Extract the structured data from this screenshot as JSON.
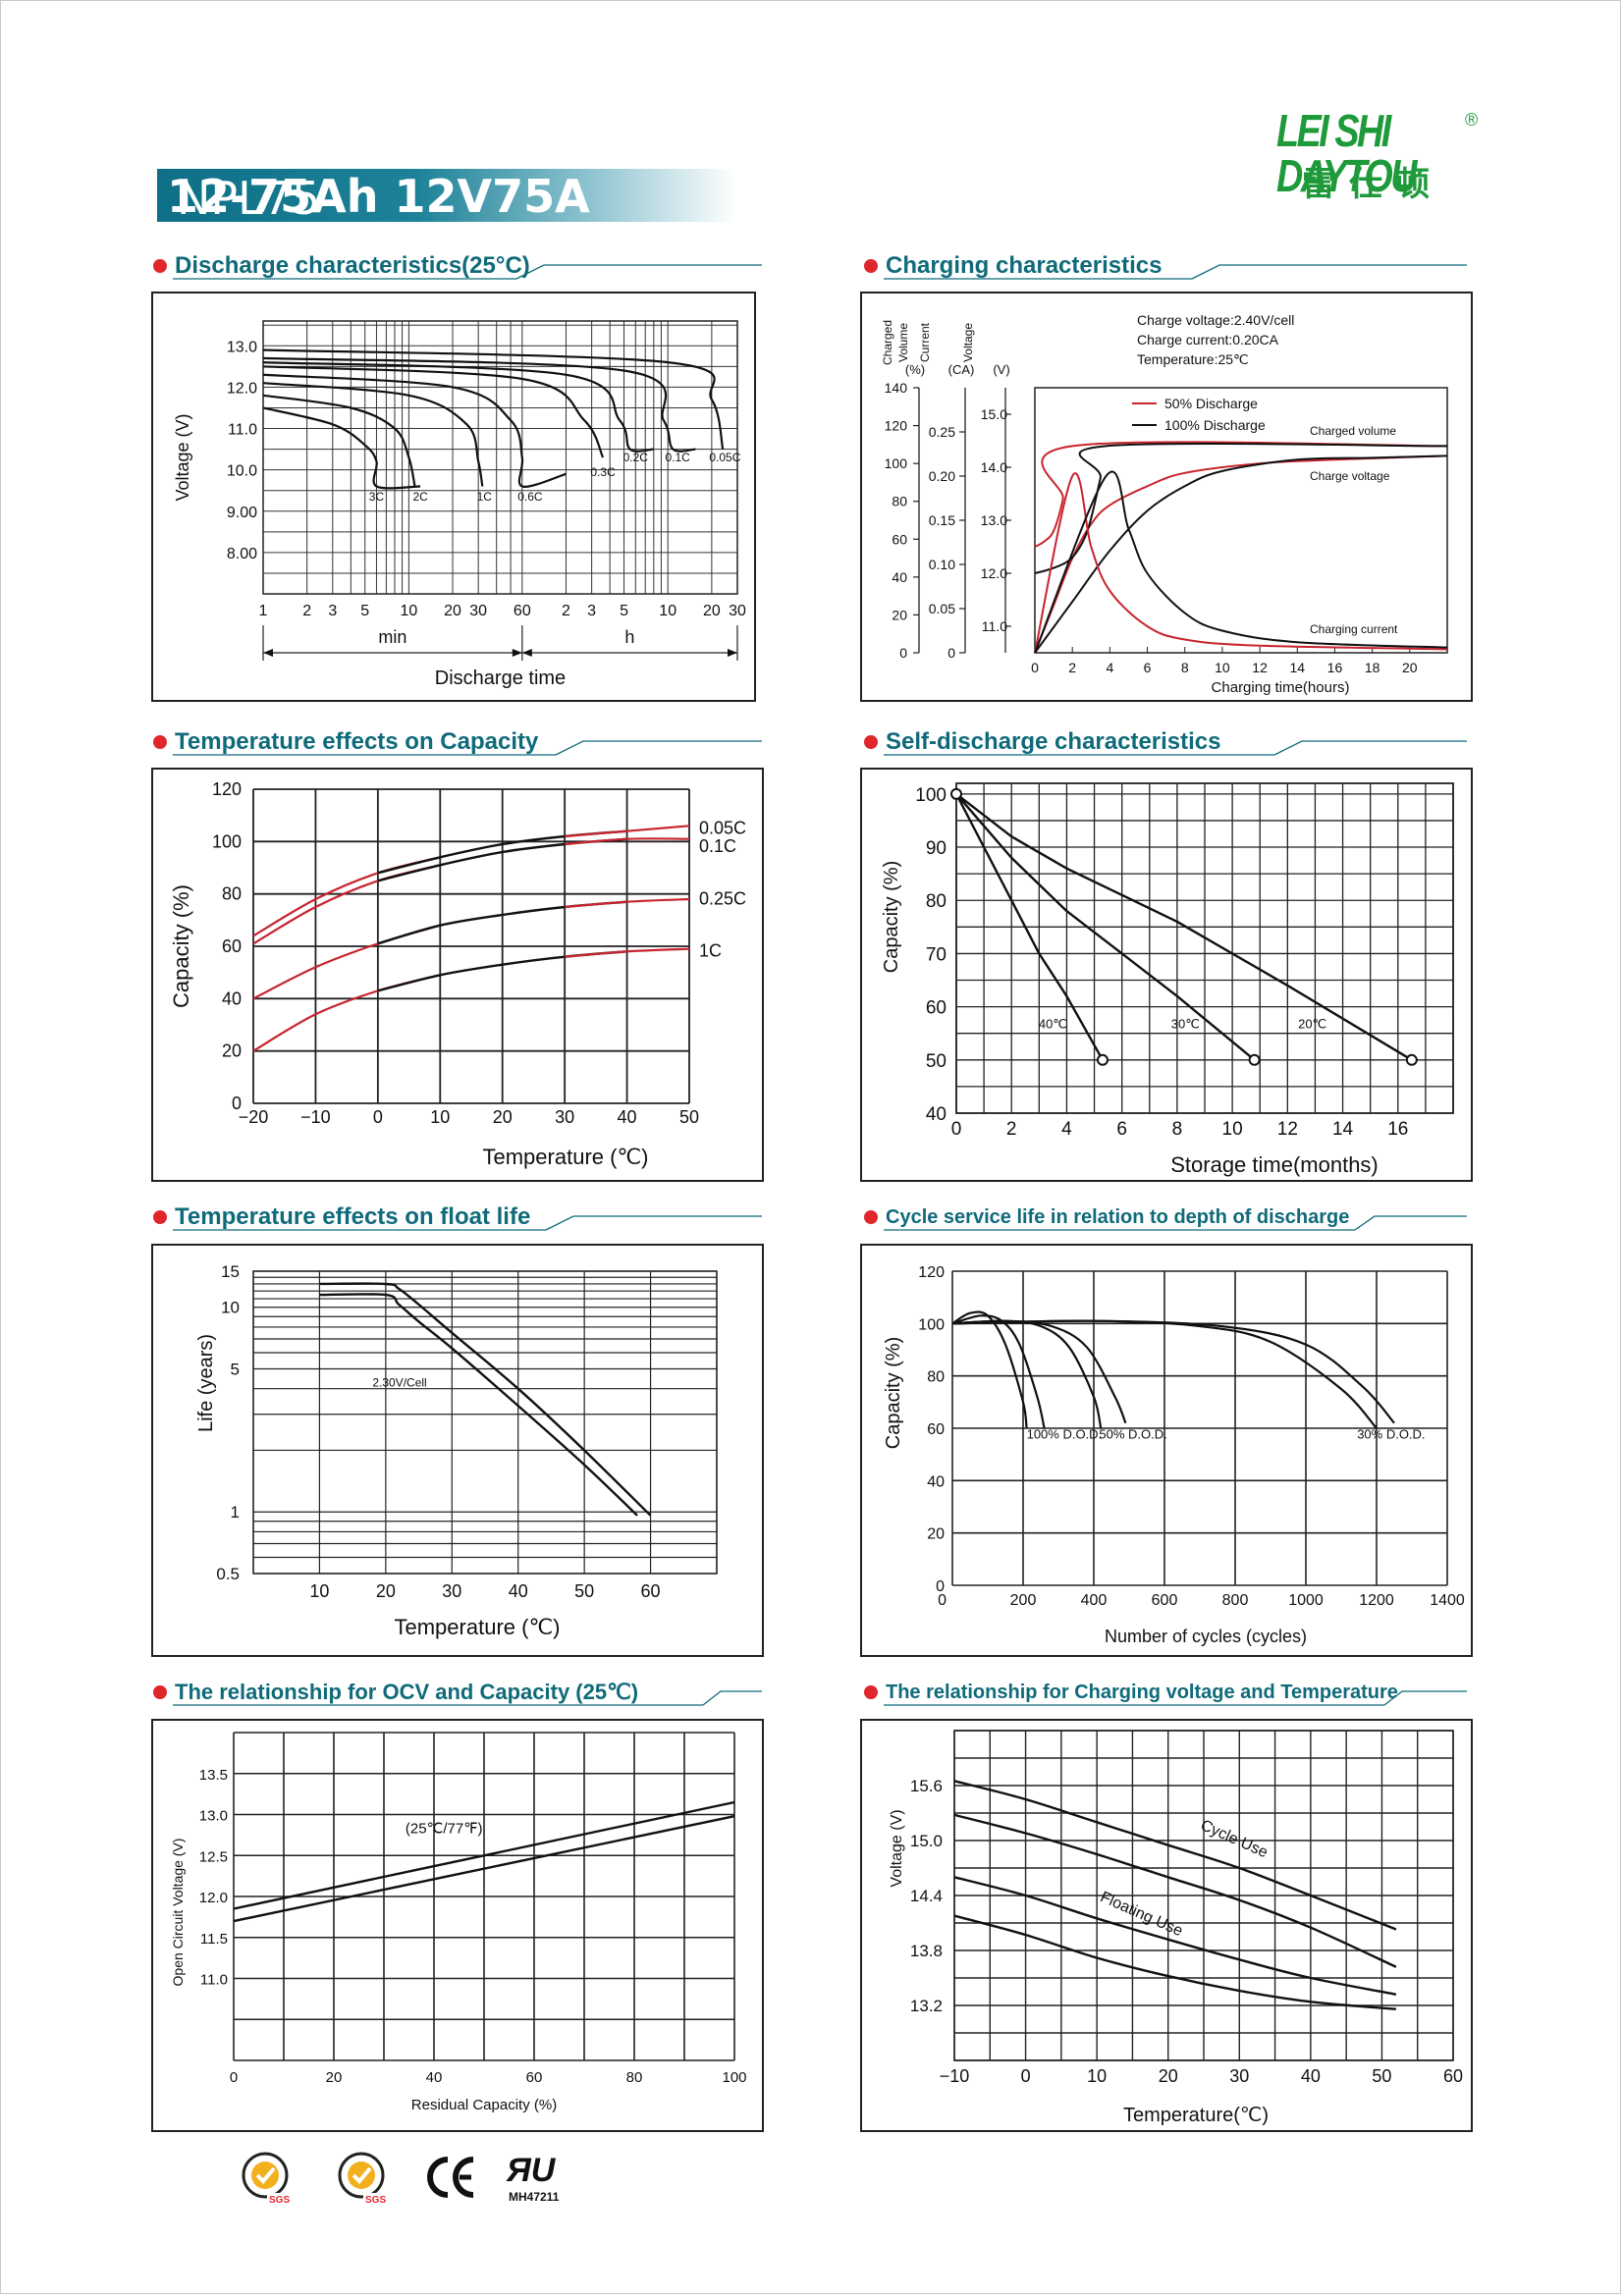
{
  "header": {
    "title_part1": "NPL75-",
    "title_part2": "12-75Ah 12V75A",
    "brand": "LEI SHI DAYTOU",
    "brand_cn": "雷仕顿",
    "reg_mark": "®",
    "brand_color": "#1e9a3a",
    "title_color": "#0e6f86"
  },
  "sections": {
    "discharge": "Discharge characteristics(25°C)",
    "charging": "Charging characteristics",
    "temp_capacity": "Temperature effects on Capacity",
    "self_discharge": "Self-discharge characteristics",
    "float_life": "Temperature effects on float life",
    "cycle_life": "Cycle service life in relation to depth of discharge",
    "ocv": "The relationship  for OCV and Capacity (25℃)",
    "charge_voltage": "The relationship for Charging voltage and Temperature"
  },
  "colors": {
    "accent_red": "#e0262b",
    "heading_teal": "#0f6a7a",
    "curve_red": "#c8242e",
    "curve_black": "#111111"
  },
  "certifications": [
    "sgs-badge-icon",
    "sgs-badge-icon",
    "ce-mark-icon",
    "ul-mark-icon"
  ],
  "cert_code": "MH47211",
  "chart_data": [
    {
      "id": "discharge",
      "type": "line",
      "ylabel": "Voltage (V)",
      "xlabel": "Discharge time",
      "x_unit_labels": [
        "min",
        "h"
      ],
      "x_scale": "log",
      "xticks_min": [
        "1",
        "2",
        "3",
        "5",
        "10",
        "20",
        "30",
        "60"
      ],
      "xticks_h": [
        "2",
        "3",
        "5",
        "10",
        "20",
        "30"
      ],
      "yticks": [
        "13.0",
        "12.0",
        "11.0",
        "10.0",
        "9.00",
        "8.00"
      ],
      "ylim": [
        7.0,
        13.6
      ],
      "series": [
        {
          "name": "3C",
          "x_min": [
            1,
            3,
            5,
            6,
            6,
            12
          ],
          "y": [
            11.5,
            11.1,
            10.6,
            10.2,
            9.6,
            9.6
          ]
        },
        {
          "name": "2C",
          "x_min": [
            1,
            4,
            8,
            10,
            11
          ],
          "y": [
            11.8,
            11.5,
            11.0,
            10.3,
            9.6
          ]
        },
        {
          "name": "1C",
          "x_min": [
            1,
            10,
            25,
            30,
            32
          ],
          "y": [
            12.1,
            11.8,
            11.1,
            10.2,
            9.6
          ]
        },
        {
          "name": "0.6C",
          "x_min": [
            1,
            20,
            50,
            60,
            60,
            120
          ],
          "y": [
            12.3,
            12.0,
            11.2,
            10.3,
            9.6,
            9.9
          ]
        },
        {
          "name": "0.3C",
          "x_min": [
            1,
            60,
            160,
            215
          ],
          "y": [
            12.5,
            12.2,
            11.2,
            10.3
          ]
        },
        {
          "name": "0.2C",
          "x_min": [
            1,
            120,
            280,
            330,
            480
          ],
          "y": [
            12.6,
            12.3,
            11.2,
            10.5,
            10.5
          ]
        },
        {
          "name": "0.1C",
          "x_min": [
            1,
            300,
            560,
            650,
            930
          ],
          "y": [
            12.7,
            12.4,
            11.2,
            10.5,
            10.5
          ]
        },
        {
          "name": "0.05C",
          "x_min": [
            1,
            600,
            1200,
            1430
          ],
          "y": [
            12.9,
            12.6,
            11.7,
            10.5
          ]
        }
      ]
    },
    {
      "id": "charging",
      "type": "line",
      "xlabel": "Charging time(hours)",
      "y_axes": [
        {
          "label": "Charged Volume",
          "unit": "(%)",
          "ticks": [
            "140",
            "120",
            "100",
            "80",
            "60",
            "40",
            "20",
            "0"
          ]
        },
        {
          "label": "Current",
          "unit": "(CA)",
          "ticks": [
            "0.25",
            "0.20",
            "0.15",
            "0.10",
            "0.05",
            "0"
          ]
        },
        {
          "label": "Voltage",
          "unit": "(V)",
          "ticks": [
            "15.0",
            "14.0",
            "13.0",
            "12.0",
            "11.0"
          ]
        }
      ],
      "xticks": [
        "0",
        "2",
        "4",
        "6",
        "8",
        "10",
        "12",
        "14",
        "16",
        "18",
        "20"
      ],
      "xlim": [
        0,
        22
      ],
      "notes": [
        "Charge voltage:2.40V/cell",
        "Charge current:0.20CA",
        "Temperature:25℃"
      ],
      "legend": [
        "50% Discharge",
        "100% Discharge"
      ],
      "curve_labels": [
        "Charged volume",
        "Charge voltage",
        "Charging current"
      ],
      "series": [
        {
          "name": "50% Discharge – volume",
          "x": [
            0,
            1,
            2,
            3,
            4,
            6,
            8,
            12,
            16,
            22
          ],
          "y_pct": [
            0,
            25,
            50,
            68,
            78,
            88,
            95,
            100,
            102,
            104
          ]
        },
        {
          "name": "100% Discharge – volume",
          "x": [
            0,
            2,
            4,
            6,
            8,
            10,
            14,
            18,
            22
          ],
          "y_pct": [
            0,
            27,
            54,
            75,
            88,
            96,
            102,
            103,
            104
          ]
        },
        {
          "name": "50% Discharge – voltage",
          "x": [
            0,
            0.5,
            1,
            1.5,
            2,
            22
          ],
          "y_v": [
            12.5,
            12.6,
            12.8,
            13.4,
            14.4,
            14.4
          ]
        },
        {
          "name": "100% Discharge – voltage",
          "x": [
            0,
            1,
            2,
            2.8,
            3.5,
            3.8,
            22
          ],
          "y_v": [
            12.0,
            12.1,
            12.3,
            12.8,
            13.8,
            14.4,
            14.4
          ]
        },
        {
          "name": "50% Discharge – current",
          "x": [
            0,
            2,
            3,
            4,
            6,
            8,
            12,
            22
          ],
          "y_ca": [
            0,
            0.2,
            0.12,
            0.07,
            0.03,
            0.015,
            0.008,
            0.004
          ]
        },
        {
          "name": "100% Discharge – current",
          "x": [
            0,
            3.8,
            5,
            6,
            8,
            10,
            14,
            22
          ],
          "y_ca": [
            0,
            0.2,
            0.14,
            0.09,
            0.045,
            0.025,
            0.012,
            0.006
          ]
        }
      ]
    },
    {
      "id": "temp_capacity",
      "type": "line",
      "xlabel": "Temperature (℃)",
      "ylabel": "Capacity  (%)",
      "xticks": [
        "−20",
        "−10",
        "0",
        "10",
        "20",
        "30",
        "40",
        "50"
      ],
      "yticks": [
        "120",
        "100",
        "80",
        "60",
        "40",
        "20",
        "0"
      ],
      "xlim": [
        -20,
        50
      ],
      "ylim": [
        0,
        120
      ],
      "series": [
        {
          "name": "0.05C",
          "x": [
            -20,
            -10,
            0,
            10,
            20,
            30,
            40,
            50
          ],
          "y": [
            64,
            78,
            88,
            94,
            99,
            102,
            104,
            106
          ]
        },
        {
          "name": "0.1C",
          "x": [
            -20,
            -10,
            0,
            10,
            20,
            30,
            40,
            50
          ],
          "y": [
            61,
            75,
            85,
            91,
            96,
            99,
            101,
            101
          ]
        },
        {
          "name": "0.25C",
          "x": [
            -20,
            -10,
            0,
            10,
            20,
            30,
            40,
            50
          ],
          "y": [
            40,
            52,
            61,
            68,
            72,
            75,
            77,
            78
          ]
        },
        {
          "name": "1C",
          "x": [
            -20,
            -10,
            0,
            10,
            20,
            30,
            40,
            50
          ],
          "y": [
            20,
            34,
            43,
            49,
            53,
            56,
            58,
            59
          ]
        }
      ]
    },
    {
      "id": "self_discharge",
      "type": "line",
      "xlabel": "Storage time(months)",
      "ylabel": "Capacity (%)",
      "xticks": [
        "0",
        "2",
        "4",
        "6",
        "8",
        "10",
        "12",
        "14",
        "16"
      ],
      "yticks": [
        "100",
        "90",
        "80",
        "70",
        "60",
        "50",
        "40"
      ],
      "xlim": [
        0,
        18
      ],
      "ylim": [
        40,
        102
      ],
      "series": [
        {
          "name": "40℃",
          "x": [
            0,
            1,
            2,
            3,
            4,
            5.3
          ],
          "y": [
            100,
            90,
            80,
            70,
            62,
            50
          ]
        },
        {
          "name": "30℃",
          "x": [
            0,
            2,
            4,
            6,
            8,
            10.8
          ],
          "y": [
            100,
            88,
            78,
            70,
            62,
            50
          ]
        },
        {
          "name": "20℃",
          "x": [
            0,
            2,
            4,
            8,
            12,
            16.5
          ],
          "y": [
            100,
            92,
            86,
            76,
            64,
            50
          ]
        }
      ]
    },
    {
      "id": "float_life",
      "type": "line",
      "xlabel": "Temperature (℃)",
      "ylabel": "Life (years)",
      "y_scale": "log",
      "xticks": [
        "10",
        "20",
        "30",
        "40",
        "50",
        "60"
      ],
      "yticks": [
        "15",
        "10",
        "5",
        "1",
        "0.5"
      ],
      "xlim": [
        0,
        70
      ],
      "ylim": [
        0.5,
        15
      ],
      "annotation": "2.30V/Cell",
      "series": [
        {
          "name": "upper",
          "x": [
            10,
            20,
            22,
            25,
            30,
            40,
            50,
            60
          ],
          "y": [
            13,
            13,
            12.3,
            10.3,
            7.5,
            4.0,
            2.0,
            0.96
          ]
        },
        {
          "name": "lower",
          "x": [
            10,
            20,
            22,
            25,
            30,
            40,
            50,
            58
          ],
          "y": [
            11.5,
            11.5,
            10.3,
            8.5,
            6.3,
            3.3,
            1.7,
            0.96
          ]
        }
      ]
    },
    {
      "id": "cycle_life",
      "type": "line",
      "xlabel": "Number of cycles (cycles)",
      "ylabel": "Capacity  (%)",
      "xticks": [
        "200",
        "400",
        "600",
        "800",
        "1000",
        "1200",
        "1400"
      ],
      "yticks": [
        "120",
        "100",
        "80",
        "60",
        "40",
        "20",
        "0"
      ],
      "xlim": [
        0,
        1400
      ],
      "ylim": [
        0,
        120
      ],
      "curve_labels": [
        "100% D.O.D.",
        "50% D.O.D.",
        "30% D.O.D."
      ],
      "series": [
        {
          "name": "100% D.O.D. a",
          "x": [
            0,
            50,
            100,
            150,
            200,
            210
          ],
          "y": [
            100,
            104,
            103,
            92,
            70,
            60
          ]
        },
        {
          "name": "100% D.O.D. b",
          "x": [
            0,
            80,
            140,
            190,
            240,
            260
          ],
          "y": [
            100,
            103,
            101,
            92,
            72,
            60
          ]
        },
        {
          "name": "50% D.O.D. a",
          "x": [
            0,
            150,
            250,
            330,
            400,
            420
          ],
          "y": [
            100,
            101,
            99,
            91,
            72,
            60
          ]
        },
        {
          "name": "50% D.O.D. b",
          "x": [
            0,
            150,
            280,
            380,
            460,
            490
          ],
          "y": [
            100,
            101,
            99,
            91,
            72,
            62
          ]
        },
        {
          "name": "30% D.O.D. a",
          "x": [
            0,
            400,
            700,
            900,
            1100,
            1200
          ],
          "y": [
            100,
            101,
            99,
            93,
            75,
            60
          ]
        },
        {
          "name": "30% D.O.D. b",
          "x": [
            0,
            400,
            760,
            1000,
            1160,
            1250
          ],
          "y": [
            100,
            101,
            99,
            92,
            76,
            62
          ]
        }
      ]
    },
    {
      "id": "ocv",
      "type": "line",
      "xlabel": "Residual Capacity (%)",
      "ylabel": "Open Circuit Voltage (V)",
      "xticks": [
        "0",
        "20",
        "40",
        "60",
        "80",
        "100"
      ],
      "yticks": [
        "13.5",
        "13.0",
        "12.5",
        "12.0",
        "11.5",
        "11.0"
      ],
      "xlim": [
        0,
        100
      ],
      "ylim": [
        10.0,
        14.0
      ],
      "annotation": "(25℃/77℉)",
      "series": [
        {
          "name": "upper",
          "x": [
            0,
            100
          ],
          "y": [
            11.85,
            13.15
          ]
        },
        {
          "name": "lower",
          "x": [
            0,
            100
          ],
          "y": [
            11.7,
            12.98
          ]
        }
      ]
    },
    {
      "id": "charge_voltage",
      "type": "line",
      "xlabel": "Temperature(℃)",
      "ylabel": "Voltage (V)",
      "xticks": [
        "−10",
        "0",
        "10",
        "20",
        "30",
        "40",
        "50",
        "60"
      ],
      "yticks": [
        "15.6",
        "15.0",
        "14.4",
        "13.8",
        "13.2"
      ],
      "xlim": [
        -10,
        60
      ],
      "ylim": [
        12.6,
        16.2
      ],
      "curve_labels": [
        "Cycle Use",
        "Floating Use"
      ],
      "series": [
        {
          "name": "Cycle Use upper",
          "x": [
            -10,
            0,
            10,
            20,
            30,
            40,
            52
          ],
          "y": [
            15.65,
            15.45,
            15.2,
            14.95,
            14.7,
            14.4,
            14.03
          ]
        },
        {
          "name": "Cycle Use lower",
          "x": [
            -10,
            0,
            10,
            20,
            30,
            40,
            52
          ],
          "y": [
            15.28,
            15.08,
            14.85,
            14.6,
            14.35,
            14.05,
            13.62
          ]
        },
        {
          "name": "Floating Use upper",
          "x": [
            -10,
            0,
            10,
            20,
            30,
            40,
            52
          ],
          "y": [
            14.6,
            14.4,
            14.15,
            13.92,
            13.7,
            13.5,
            13.32
          ]
        },
        {
          "name": "Floating Use lower",
          "x": [
            -10,
            0,
            10,
            20,
            30,
            40,
            52
          ],
          "y": [
            14.18,
            13.97,
            13.72,
            13.52,
            13.36,
            13.24,
            13.16
          ]
        }
      ]
    }
  ]
}
